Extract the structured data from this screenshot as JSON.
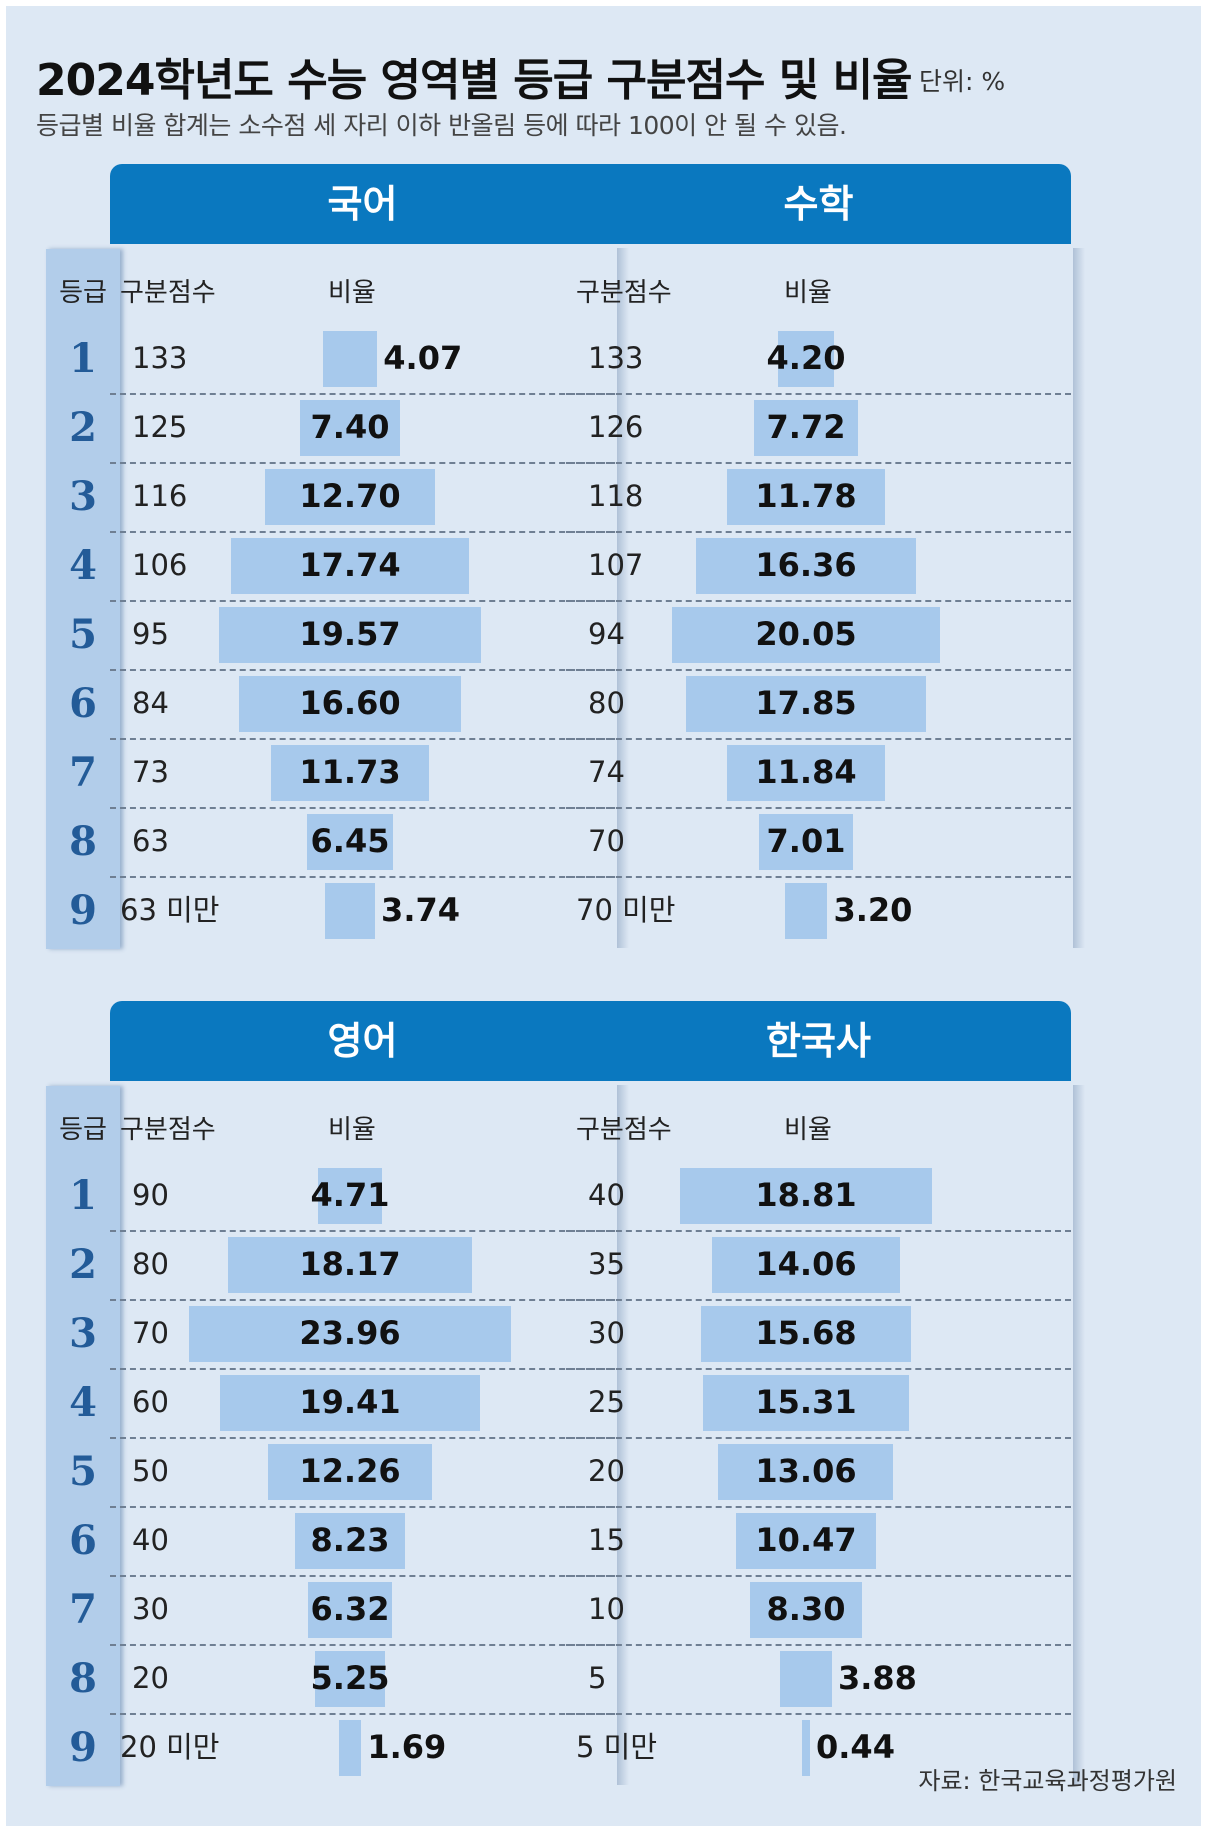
{
  "title": "2024학년도 수능 영역별 등급 구분점수 및 비율",
  "unit": "단위: %",
  "subtitle": "등급별 비율 합계는 소수점 세 자리 이하 반올림 등에 따라 100이 안 될 수 있음.",
  "source": "자료: 한국교육과정평가원",
  "headers": {
    "grade": "등급",
    "cutoff": "구분점수",
    "ratio": "비율"
  },
  "grades": [
    "1",
    "2",
    "3",
    "4",
    "5",
    "6",
    "7",
    "8",
    "9"
  ],
  "colors": {
    "header": "#0a78bf",
    "bar": "#a7c9ec",
    "background": "#dde8f4",
    "grade_column": "#b2cdea",
    "grade_number": "#235b98"
  },
  "chart_data": [
    {
      "type": "bar",
      "title": "국어",
      "categories": [
        "1",
        "2",
        "3",
        "4",
        "5",
        "6",
        "7",
        "8",
        "9"
      ],
      "cutoffs": [
        "133",
        "125",
        "116",
        "106",
        "95",
        "84",
        "73",
        "63",
        "63 미만"
      ],
      "values": [
        4.07,
        7.4,
        12.7,
        17.74,
        19.57,
        16.6,
        11.73,
        6.45,
        3.74
      ],
      "labels": [
        "4.07",
        "7.40",
        "12.70",
        "17.74",
        "19.57",
        "16.60",
        "11.73",
        "6.45",
        "3.74"
      ]
    },
    {
      "type": "bar",
      "title": "수학",
      "categories": [
        "1",
        "2",
        "3",
        "4",
        "5",
        "6",
        "7",
        "8",
        "9"
      ],
      "cutoffs": [
        "133",
        "126",
        "118",
        "107",
        "94",
        "80",
        "74",
        "70",
        "70 미만"
      ],
      "values": [
        4.2,
        7.72,
        11.78,
        16.36,
        20.05,
        17.85,
        11.84,
        7.01,
        3.2
      ],
      "labels": [
        "4.20",
        "7.72",
        "11.78",
        "16.36",
        "20.05",
        "17.85",
        "11.84",
        "7.01",
        "3.20"
      ]
    },
    {
      "type": "bar",
      "title": "영어",
      "categories": [
        "1",
        "2",
        "3",
        "4",
        "5",
        "6",
        "7",
        "8",
        "9"
      ],
      "cutoffs": [
        "90",
        "80",
        "70",
        "60",
        "50",
        "40",
        "30",
        "20",
        "20 미만"
      ],
      "values": [
        4.71,
        18.17,
        23.96,
        19.41,
        12.26,
        8.23,
        6.32,
        5.25,
        1.69
      ],
      "labels": [
        "4.71",
        "18.17",
        "23.96",
        "19.41",
        "12.26",
        "8.23",
        "6.32",
        "5.25",
        "1.69"
      ]
    },
    {
      "type": "bar",
      "title": "한국사",
      "categories": [
        "1",
        "2",
        "3",
        "4",
        "5",
        "6",
        "7",
        "8",
        "9"
      ],
      "cutoffs": [
        "40",
        "35",
        "30",
        "25",
        "20",
        "15",
        "10",
        "5",
        "5 미만"
      ],
      "values": [
        18.81,
        14.06,
        15.68,
        15.31,
        13.06,
        10.47,
        8.3,
        3.88,
        0.44
      ],
      "labels": [
        "18.81",
        "14.06",
        "15.68",
        "15.31",
        "13.06",
        "10.47",
        "8.30",
        "3.88",
        "0.44"
      ]
    }
  ]
}
